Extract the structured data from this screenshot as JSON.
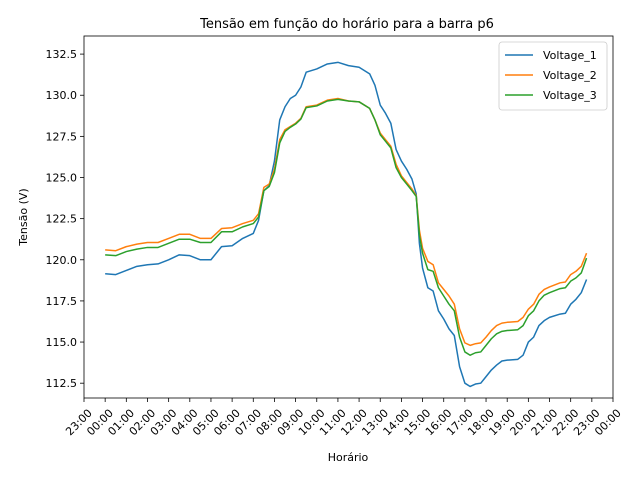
{
  "chart_data": {
    "type": "line",
    "title": "Tensão em função do horário para a barra p6",
    "xlabel": "Horário",
    "ylabel": "Tensão (V)",
    "x_unit": "hours",
    "xlim": [
      -1,
      24
    ],
    "ylim": [
      111.6,
      133.6
    ],
    "x_tick_values": [
      -1,
      0,
      1,
      2,
      3,
      4,
      5,
      6,
      7,
      8,
      9,
      10,
      11,
      12,
      13,
      14,
      15,
      16,
      17,
      18,
      19,
      20,
      21,
      22,
      23,
      24
    ],
    "x_tick_labels": [
      "23:00",
      "00:00",
      "01:00",
      "02:00",
      "03:00",
      "04:00",
      "05:00",
      "06:00",
      "07:00",
      "08:00",
      "09:00",
      "10:00",
      "11:00",
      "12:00",
      "13:00",
      "14:00",
      "15:00",
      "16:00",
      "17:00",
      "18:00",
      "19:00",
      "20:00",
      "21:00",
      "22:00",
      "23:00",
      "00:00"
    ],
    "y_tick_values": [
      112.5,
      115.0,
      117.5,
      120.0,
      122.5,
      125.0,
      127.5,
      130.0,
      132.5
    ],
    "y_tick_labels": [
      "112.5",
      "115.0",
      "117.5",
      "120.0",
      "122.5",
      "125.0",
      "127.5",
      "130.0",
      "132.5"
    ],
    "grid": false,
    "legend_position": "top-right",
    "series": [
      {
        "name": "Voltage_1",
        "color": "#1f77b4",
        "points": [
          [
            0,
            119.15
          ],
          [
            0.5,
            119.1
          ],
          [
            1,
            119.35
          ],
          [
            1.5,
            119.6
          ],
          [
            2,
            119.7
          ],
          [
            2.5,
            119.75
          ],
          [
            3,
            120.0
          ],
          [
            3.5,
            120.3
          ],
          [
            4,
            120.25
          ],
          [
            4.5,
            120.0
          ],
          [
            5,
            120.0
          ],
          [
            5.5,
            120.8
          ],
          [
            6,
            120.85
          ],
          [
            6.5,
            121.3
          ],
          [
            7,
            121.6
          ],
          [
            7.25,
            122.4
          ],
          [
            7.5,
            124.2
          ],
          [
            7.75,
            124.5
          ],
          [
            8,
            126.0
          ],
          [
            8.25,
            128.5
          ],
          [
            8.5,
            129.3
          ],
          [
            8.75,
            129.8
          ],
          [
            9,
            130.0
          ],
          [
            9.25,
            130.5
          ],
          [
            9.5,
            131.4
          ],
          [
            10,
            131.6
          ],
          [
            10.5,
            131.9
          ],
          [
            11,
            132.0
          ],
          [
            11.5,
            131.8
          ],
          [
            12,
            131.7
          ],
          [
            12.5,
            131.3
          ],
          [
            12.75,
            130.6
          ],
          [
            13,
            129.4
          ],
          [
            13.25,
            128.9
          ],
          [
            13.5,
            128.3
          ],
          [
            13.75,
            126.7
          ],
          [
            14,
            126.0
          ],
          [
            14.25,
            125.5
          ],
          [
            14.5,
            124.9
          ],
          [
            14.7,
            124.0
          ],
          [
            14.85,
            121.0
          ],
          [
            15,
            119.5
          ],
          [
            15.25,
            118.3
          ],
          [
            15.5,
            118.1
          ],
          [
            15.75,
            116.9
          ],
          [
            16,
            116.4
          ],
          [
            16.25,
            115.8
          ],
          [
            16.5,
            115.4
          ],
          [
            16.75,
            113.5
          ],
          [
            17,
            112.5
          ],
          [
            17.25,
            112.3
          ],
          [
            17.5,
            112.45
          ],
          [
            17.75,
            112.5
          ],
          [
            18,
            112.9
          ],
          [
            18.25,
            113.3
          ],
          [
            18.5,
            113.6
          ],
          [
            18.75,
            113.85
          ],
          [
            19,
            113.9
          ],
          [
            19.5,
            113.95
          ],
          [
            19.75,
            114.2
          ],
          [
            20,
            115.0
          ],
          [
            20.25,
            115.3
          ],
          [
            20.5,
            116.0
          ],
          [
            20.75,
            116.3
          ],
          [
            21,
            116.5
          ],
          [
            21.5,
            116.7
          ],
          [
            21.75,
            116.75
          ],
          [
            22,
            117.3
          ],
          [
            22.25,
            117.6
          ],
          [
            22.5,
            118.0
          ],
          [
            22.75,
            118.8
          ]
        ]
      },
      {
        "name": "Voltage_2",
        "color": "#ff7f0e",
        "points": [
          [
            0,
            120.6
          ],
          [
            0.5,
            120.55
          ],
          [
            1,
            120.8
          ],
          [
            1.5,
            120.95
          ],
          [
            2,
            121.05
          ],
          [
            2.5,
            121.05
          ],
          [
            3,
            121.3
          ],
          [
            3.5,
            121.55
          ],
          [
            4,
            121.55
          ],
          [
            4.5,
            121.3
          ],
          [
            5,
            121.3
          ],
          [
            5.5,
            121.9
          ],
          [
            6,
            121.95
          ],
          [
            6.5,
            122.2
          ],
          [
            7,
            122.4
          ],
          [
            7.25,
            122.8
          ],
          [
            7.5,
            124.4
          ],
          [
            7.75,
            124.6
          ],
          [
            8,
            125.5
          ],
          [
            8.25,
            127.3
          ],
          [
            8.5,
            127.9
          ],
          [
            8.75,
            128.1
          ],
          [
            9,
            128.3
          ],
          [
            9.25,
            128.6
          ],
          [
            9.5,
            129.3
          ],
          [
            10,
            129.4
          ],
          [
            10.5,
            129.7
          ],
          [
            11,
            129.8
          ],
          [
            11.5,
            129.65
          ],
          [
            12,
            129.6
          ],
          [
            12.5,
            129.2
          ],
          [
            12.75,
            128.5
          ],
          [
            13,
            127.7
          ],
          [
            13.25,
            127.3
          ],
          [
            13.5,
            126.9
          ],
          [
            13.75,
            125.8
          ],
          [
            14,
            125.1
          ],
          [
            14.25,
            124.7
          ],
          [
            14.5,
            124.3
          ],
          [
            14.7,
            123.9
          ],
          [
            14.85,
            121.8
          ],
          [
            15,
            120.7
          ],
          [
            15.25,
            119.9
          ],
          [
            15.5,
            119.7
          ],
          [
            15.75,
            118.6
          ],
          [
            16,
            118.2
          ],
          [
            16.25,
            117.8
          ],
          [
            16.5,
            117.3
          ],
          [
            16.75,
            115.8
          ],
          [
            17,
            114.95
          ],
          [
            17.25,
            114.8
          ],
          [
            17.5,
            114.9
          ],
          [
            17.75,
            114.95
          ],
          [
            18,
            115.3
          ],
          [
            18.25,
            115.7
          ],
          [
            18.5,
            116.0
          ],
          [
            18.75,
            116.15
          ],
          [
            19,
            116.2
          ],
          [
            19.5,
            116.25
          ],
          [
            19.75,
            116.5
          ],
          [
            20,
            117.0
          ],
          [
            20.25,
            117.3
          ],
          [
            20.5,
            117.9
          ],
          [
            20.75,
            118.2
          ],
          [
            21,
            118.35
          ],
          [
            21.5,
            118.6
          ],
          [
            21.75,
            118.65
          ],
          [
            22,
            119.1
          ],
          [
            22.25,
            119.3
          ],
          [
            22.5,
            119.6
          ],
          [
            22.75,
            120.4
          ]
        ]
      },
      {
        "name": "Voltage_3",
        "color": "#2ca02c",
        "points": [
          [
            0,
            120.3
          ],
          [
            0.5,
            120.25
          ],
          [
            1,
            120.5
          ],
          [
            1.5,
            120.65
          ],
          [
            2,
            120.75
          ],
          [
            2.5,
            120.75
          ],
          [
            3,
            121.0
          ],
          [
            3.5,
            121.25
          ],
          [
            4,
            121.25
          ],
          [
            4.5,
            121.05
          ],
          [
            5,
            121.05
          ],
          [
            5.5,
            121.7
          ],
          [
            6,
            121.7
          ],
          [
            6.5,
            122.0
          ],
          [
            7,
            122.2
          ],
          [
            7.25,
            122.6
          ],
          [
            7.5,
            124.2
          ],
          [
            7.75,
            124.45
          ],
          [
            8,
            125.3
          ],
          [
            8.25,
            127.1
          ],
          [
            8.5,
            127.8
          ],
          [
            8.75,
            128.05
          ],
          [
            9,
            128.25
          ],
          [
            9.25,
            128.55
          ],
          [
            9.5,
            129.25
          ],
          [
            10,
            129.35
          ],
          [
            10.5,
            129.65
          ],
          [
            11,
            129.75
          ],
          [
            11.5,
            129.65
          ],
          [
            12,
            129.6
          ],
          [
            12.5,
            129.2
          ],
          [
            12.75,
            128.5
          ],
          [
            13,
            127.6
          ],
          [
            13.25,
            127.2
          ],
          [
            13.5,
            126.8
          ],
          [
            13.75,
            125.6
          ],
          [
            14,
            125.0
          ],
          [
            14.25,
            124.6
          ],
          [
            14.5,
            124.2
          ],
          [
            14.7,
            123.85
          ],
          [
            14.85,
            121.5
          ],
          [
            15,
            120.4
          ],
          [
            15.25,
            119.4
          ],
          [
            15.5,
            119.3
          ],
          [
            15.75,
            118.3
          ],
          [
            16,
            117.8
          ],
          [
            16.25,
            117.3
          ],
          [
            16.5,
            116.9
          ],
          [
            16.75,
            115.3
          ],
          [
            17,
            114.4
          ],
          [
            17.25,
            114.2
          ],
          [
            17.5,
            114.35
          ],
          [
            17.75,
            114.4
          ],
          [
            18,
            114.8
          ],
          [
            18.25,
            115.2
          ],
          [
            18.5,
            115.5
          ],
          [
            18.75,
            115.65
          ],
          [
            19,
            115.7
          ],
          [
            19.5,
            115.75
          ],
          [
            19.75,
            116.0
          ],
          [
            20,
            116.6
          ],
          [
            20.25,
            116.9
          ],
          [
            20.5,
            117.5
          ],
          [
            20.75,
            117.85
          ],
          [
            21,
            118.0
          ],
          [
            21.5,
            118.25
          ],
          [
            21.75,
            118.3
          ],
          [
            22,
            118.7
          ],
          [
            22.25,
            118.9
          ],
          [
            22.5,
            119.2
          ],
          [
            22.75,
            120.1
          ]
        ]
      }
    ]
  }
}
